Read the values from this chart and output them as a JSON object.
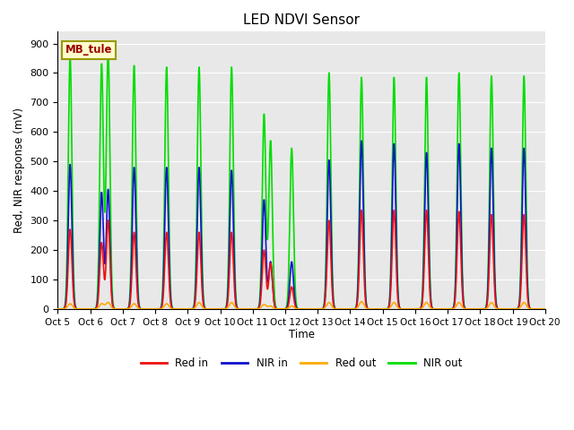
{
  "title": "LED NDVI Sensor",
  "ylabel": "Red, NIR response (mV)",
  "xlabel": "Time",
  "ylim": [
    0,
    940
  ],
  "yticks": [
    0,
    100,
    200,
    300,
    400,
    500,
    600,
    700,
    800,
    900
  ],
  "xtick_labels": [
    "Oct 5",
    "Oct 6",
    "Oct 7",
    "Oct 8",
    "Oct 9",
    "Oct 10",
    "Oct 11",
    "Oct 12",
    "Oct 13",
    "Oct 14",
    "Oct 15",
    "Oct 16",
    "Oct 17",
    "Oct 18",
    "Oct 19",
    "Oct 20"
  ],
  "legend_label": "MB_tule",
  "colors": {
    "red_in": "#ee1111",
    "nir_in": "#1111cc",
    "red_out": "#ffaa00",
    "nir_out": "#00dd00"
  },
  "line_width": 1.2,
  "spike_events": [
    {
      "day": 0.38,
      "r": 270,
      "n": 490,
      "no": 855,
      "ro": 18
    },
    {
      "day": 1.35,
      "r": 225,
      "n": 395,
      "no": 830,
      "ro": 18
    },
    {
      "day": 1.55,
      "r": 300,
      "n": 405,
      "no": 880,
      "ro": 22
    },
    {
      "day": 2.35,
      "r": 260,
      "n": 480,
      "no": 825,
      "ro": 18
    },
    {
      "day": 3.35,
      "r": 260,
      "n": 480,
      "no": 820,
      "ro": 18
    },
    {
      "day": 4.35,
      "r": 260,
      "n": 480,
      "no": 820,
      "ro": 22
    },
    {
      "day": 5.35,
      "r": 260,
      "n": 470,
      "no": 820,
      "ro": 22
    },
    {
      "day": 6.35,
      "r": 200,
      "n": 370,
      "no": 660,
      "ro": 15
    },
    {
      "day": 6.55,
      "r": 155,
      "n": 160,
      "no": 570,
      "ro": 10
    },
    {
      "day": 7.2,
      "r": 75,
      "n": 160,
      "no": 545,
      "ro": 10
    },
    {
      "day": 8.35,
      "r": 300,
      "n": 505,
      "no": 800,
      "ro": 22
    },
    {
      "day": 9.35,
      "r": 335,
      "n": 570,
      "no": 785,
      "ro": 25
    },
    {
      "day": 10.35,
      "r": 335,
      "n": 560,
      "no": 785,
      "ro": 22
    },
    {
      "day": 11.35,
      "r": 335,
      "n": 530,
      "no": 785,
      "ro": 22
    },
    {
      "day": 12.35,
      "r": 330,
      "n": 560,
      "no": 800,
      "ro": 22
    },
    {
      "day": 13.35,
      "r": 320,
      "n": 545,
      "no": 790,
      "ro": 22
    },
    {
      "day": 14.35,
      "r": 320,
      "n": 545,
      "no": 790,
      "ro": 22
    }
  ]
}
